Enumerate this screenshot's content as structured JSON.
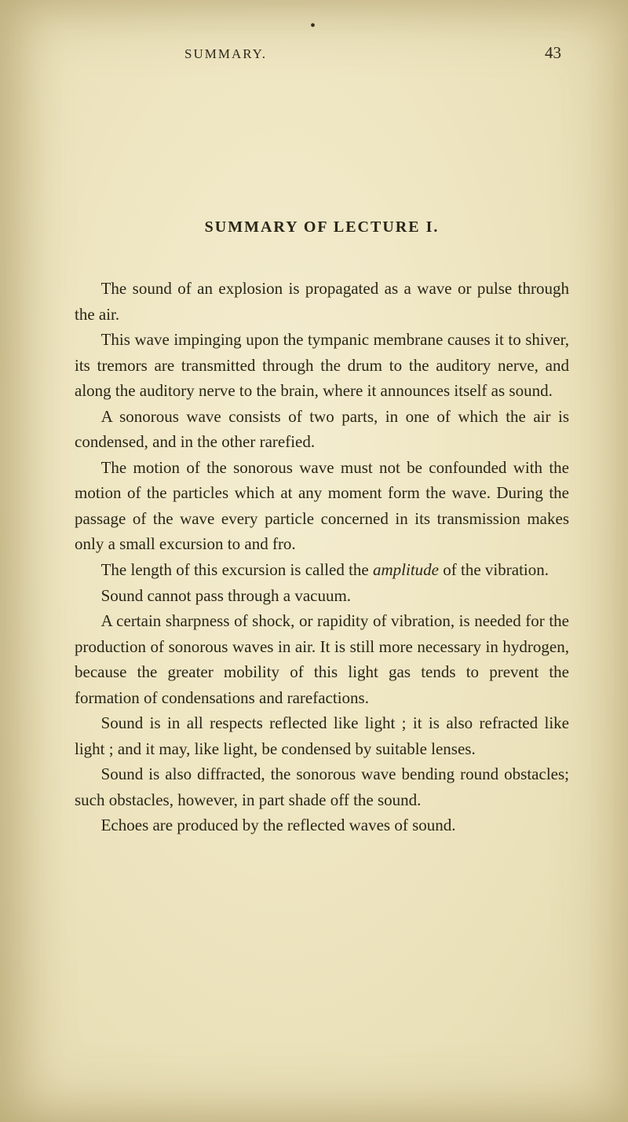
{
  "page": {
    "running_head": "SUMMARY.",
    "page_number": "43",
    "dot": "•"
  },
  "chapter_title": "SUMMARY OF LECTURE I.",
  "paragraphs": {
    "p1": "The sound of an explosion is propagated as a wave or pulse through the air.",
    "p2": "This wave impinging upon the tympanic membrane causes it to shiver, its tremors are transmitted through the drum to the auditory nerve, and along the auditory nerve to the brain, where it announces itself as sound.",
    "p3": "A sonorous wave consists of two parts, in one of which the air is condensed, and in the other rarefied.",
    "p4": "The motion of the sonorous wave must not be con­founded with the motion of the particles which at any moment form the wave. During the passage of the wave every particle concerned in its transmission makes only a small excursion to and fro.",
    "p5a": "The length of this excursion is called the ",
    "p5_italic": "amplitude",
    "p5b": " of the vibration.",
    "p6": "Sound cannot pass through a vacuum.",
    "p7": "A certain sharpness of shock, or rapidity of vibration, is needed for the production of sonorous waves in air. It is still more necessary in hydrogen, because the greater mobility of this light gas tends to prevent the formation of condensations and rarefactions.",
    "p8": "Sound is in all respects reflected like light ; it is also refracted like light ; and it may, like light, be condensed by suitable lenses.",
    "p9": "Sound is also diffracted, the sonorous wave bending round obstacles; such obstacles, however, in part shade off the sound.",
    "p10": "Echoes are produced by the reflected waves of sound."
  },
  "style": {
    "background_color": "#f0e8c8",
    "text_color": "#2a2618",
    "body_fontsize": 21,
    "line_height": 1.55,
    "title_fontsize": 20,
    "header_fontsize": 17
  }
}
